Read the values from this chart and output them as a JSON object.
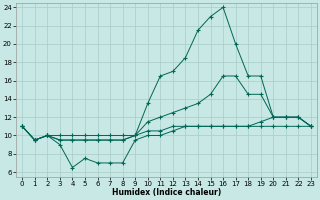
{
  "xlabel": "Humidex (Indice chaleur)",
  "bg_color": "#c8e8e5",
  "line_color": "#006655",
  "grid_color": "#a8ccc9",
  "xlim": [
    -0.5,
    23.5
  ],
  "ylim": [
    5.5,
    24.5
  ],
  "xticks": [
    0,
    1,
    2,
    3,
    4,
    5,
    6,
    7,
    8,
    9,
    10,
    11,
    12,
    13,
    14,
    15,
    16,
    17,
    18,
    19,
    20,
    21,
    22,
    23
  ],
  "yticks": [
    6,
    8,
    10,
    12,
    14,
    16,
    18,
    20,
    22,
    24
  ],
  "line1_x": [
    0,
    1,
    2,
    3,
    4,
    5,
    6,
    7,
    8,
    9,
    10,
    11,
    12,
    13,
    14,
    15,
    16,
    17,
    18,
    19,
    20,
    21,
    22,
    23
  ],
  "line1_y": [
    11.0,
    9.5,
    10.0,
    10.0,
    10.0,
    10.0,
    10.0,
    10.0,
    10.0,
    10.0,
    10.5,
    10.5,
    11.0,
    11.0,
    11.0,
    11.0,
    11.0,
    11.0,
    11.0,
    11.0,
    11.0,
    11.0,
    11.0,
    11.0
  ],
  "line2_x": [
    0,
    1,
    2,
    3,
    4,
    5,
    6,
    7,
    8,
    9,
    10,
    11,
    12,
    13,
    14,
    15,
    16,
    17,
    18,
    19,
    20,
    21,
    22,
    23
  ],
  "line2_y": [
    11.0,
    9.5,
    10.0,
    9.0,
    6.5,
    7.5,
    7.0,
    7.0,
    7.0,
    9.5,
    10.0,
    10.0,
    10.5,
    11.0,
    11.0,
    11.0,
    11.0,
    11.0,
    11.0,
    11.5,
    12.0,
    12.0,
    12.0,
    11.0
  ],
  "line3_x": [
    0,
    1,
    2,
    3,
    4,
    5,
    6,
    7,
    8,
    9,
    10,
    11,
    12,
    13,
    14,
    15,
    16,
    17,
    18,
    19,
    20,
    21,
    22,
    23
  ],
  "line3_y": [
    11.0,
    9.5,
    10.0,
    9.5,
    9.5,
    9.5,
    9.5,
    9.5,
    9.5,
    10.0,
    11.5,
    12.0,
    12.5,
    13.0,
    13.5,
    14.5,
    16.5,
    16.5,
    14.5,
    14.5,
    12.0,
    12.0,
    12.0,
    11.0
  ],
  "line4_x": [
    0,
    1,
    2,
    3,
    4,
    5,
    6,
    7,
    8,
    9,
    10,
    11,
    12,
    13,
    14,
    15,
    16,
    17,
    18,
    19,
    20,
    21,
    22,
    23
  ],
  "line4_y": [
    11.0,
    9.5,
    10.0,
    9.5,
    9.5,
    9.5,
    9.5,
    9.5,
    9.5,
    10.0,
    13.5,
    16.5,
    17.0,
    18.5,
    21.5,
    23.0,
    24.0,
    20.0,
    16.5,
    16.5,
    12.0,
    12.0,
    12.0,
    11.0
  ]
}
